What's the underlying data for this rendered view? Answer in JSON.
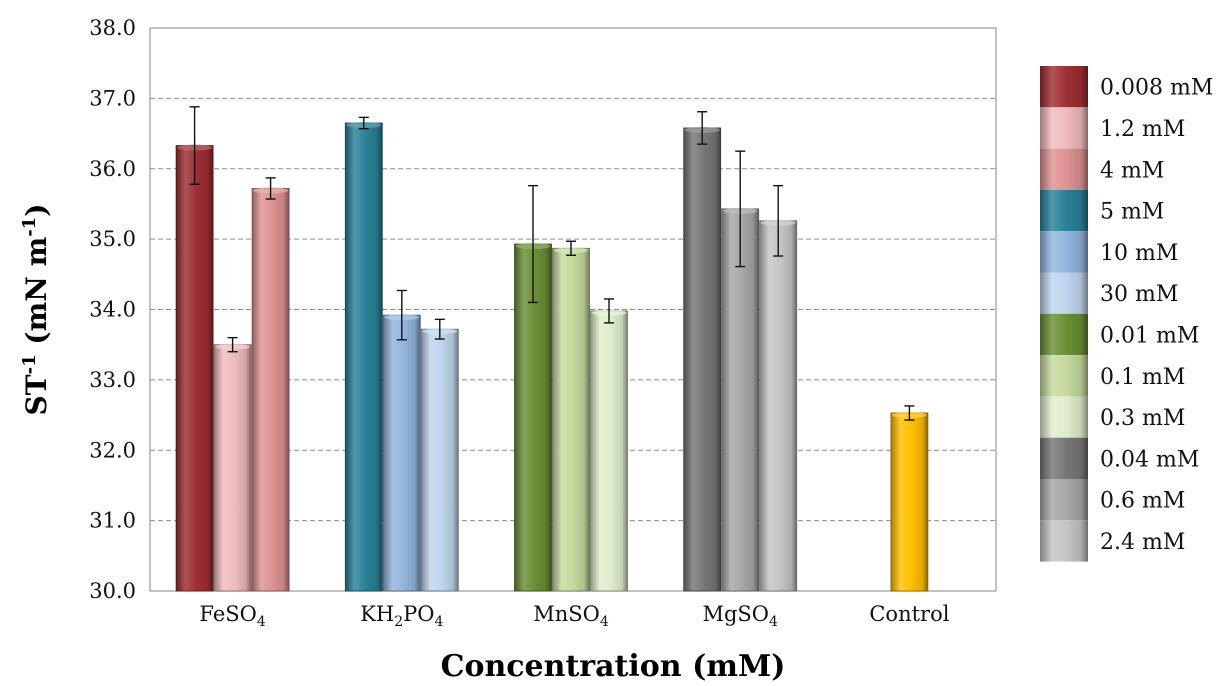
{
  "chart_data": {
    "type": "bar",
    "title": "",
    "xlabel": "Concentration (mM)",
    "ylabel": "ST-1 (mN m-1)",
    "ylabel_parts": {
      "main": "ST",
      "sup1": "-1",
      "mid": " (mN m",
      "sup2": "-1",
      "end": ")"
    },
    "ylim": [
      30.0,
      38.0
    ],
    "yticks": [
      30.0,
      31.0,
      32.0,
      33.0,
      34.0,
      35.0,
      36.0,
      37.0,
      38.0
    ],
    "grid": true,
    "legend_position": "right",
    "groups": [
      {
        "category": "FeSO4",
        "label_parts": [
          [
            "FeSO",
            ""
          ],
          [
            "4",
            "sub"
          ]
        ],
        "bars": [
          {
            "series": "0.008 mM",
            "value": 36.33,
            "error": 0.55,
            "color": "#9e2f33"
          },
          {
            "series": "1.2 mM",
            "value": 33.5,
            "error": 0.1,
            "color": "#f0bcbd"
          },
          {
            "series": "4 mM",
            "value": 35.72,
            "error": 0.15,
            "color": "#de9294"
          }
        ]
      },
      {
        "category": "KH2PO4",
        "label_parts": [
          [
            "KH",
            ""
          ],
          [
            "2",
            "sub"
          ],
          [
            "PO",
            ""
          ],
          [
            "4",
            "sub"
          ]
        ],
        "bars": [
          {
            "series": "5 mM",
            "value": 36.65,
            "error": 0.08,
            "color": "#2a8197"
          },
          {
            "series": "10 mM",
            "value": 33.92,
            "error": 0.35,
            "color": "#93b5dd"
          },
          {
            "series": "30 mM",
            "value": 33.72,
            "error": 0.14,
            "color": "#c0d6ef"
          }
        ]
      },
      {
        "category": "MnSO4",
        "label_parts": [
          [
            "MnSO",
            ""
          ],
          [
            "4",
            "sub"
          ]
        ],
        "bars": [
          {
            "series": "0.01 mM",
            "value": 34.93,
            "error": 0.83,
            "color": "#6a8f35"
          },
          {
            "series": "0.1 mM",
            "value": 34.87,
            "error": 0.1,
            "color": "#c6da9f"
          },
          {
            "series": "0.3 mM",
            "value": 33.98,
            "error": 0.17,
            "color": "#e0edcd"
          }
        ]
      },
      {
        "category": "MgSO4",
        "label_parts": [
          [
            "MgSO",
            ""
          ],
          [
            "4",
            "sub"
          ]
        ],
        "bars": [
          {
            "series": "0.04 mM",
            "value": 36.58,
            "error": 0.23,
            "color": "#777777"
          },
          {
            "series": "0.6 mM",
            "value": 35.43,
            "error": 0.82,
            "color": "#a7a7a7"
          },
          {
            "series": "2.4 mM",
            "value": 35.26,
            "error": 0.5,
            "color": "#c5c5c5"
          }
        ]
      },
      {
        "category": "Control",
        "label_parts": [
          [
            "Control",
            ""
          ]
        ],
        "bars": [
          {
            "series": "Control",
            "value": 32.53,
            "error": 0.1,
            "color": "#ffc000"
          }
        ]
      }
    ],
    "legend": [
      {
        "label": "0.008 mM",
        "color": "#9e2f33"
      },
      {
        "label": "1.2 mM",
        "color": "#f0bcbd"
      },
      {
        "label": "4 mM",
        "color": "#de9294"
      },
      {
        "label": "5 mM",
        "color": "#2a8197"
      },
      {
        "label": "10 mM",
        "color": "#93b5dd"
      },
      {
        "label": "30 mM",
        "color": "#c0d6ef"
      },
      {
        "label": "0.01 mM",
        "color": "#6a8f35"
      },
      {
        "label": "0.1 mM",
        "color": "#c6da9f"
      },
      {
        "label": "0.3 mM",
        "color": "#e0edcd"
      },
      {
        "label": "0.04 mM",
        "color": "#777777"
      },
      {
        "label": "0.6 mM",
        "color": "#a7a7a7"
      },
      {
        "label": "2.4 mM",
        "color": "#c5c5c5"
      }
    ]
  }
}
